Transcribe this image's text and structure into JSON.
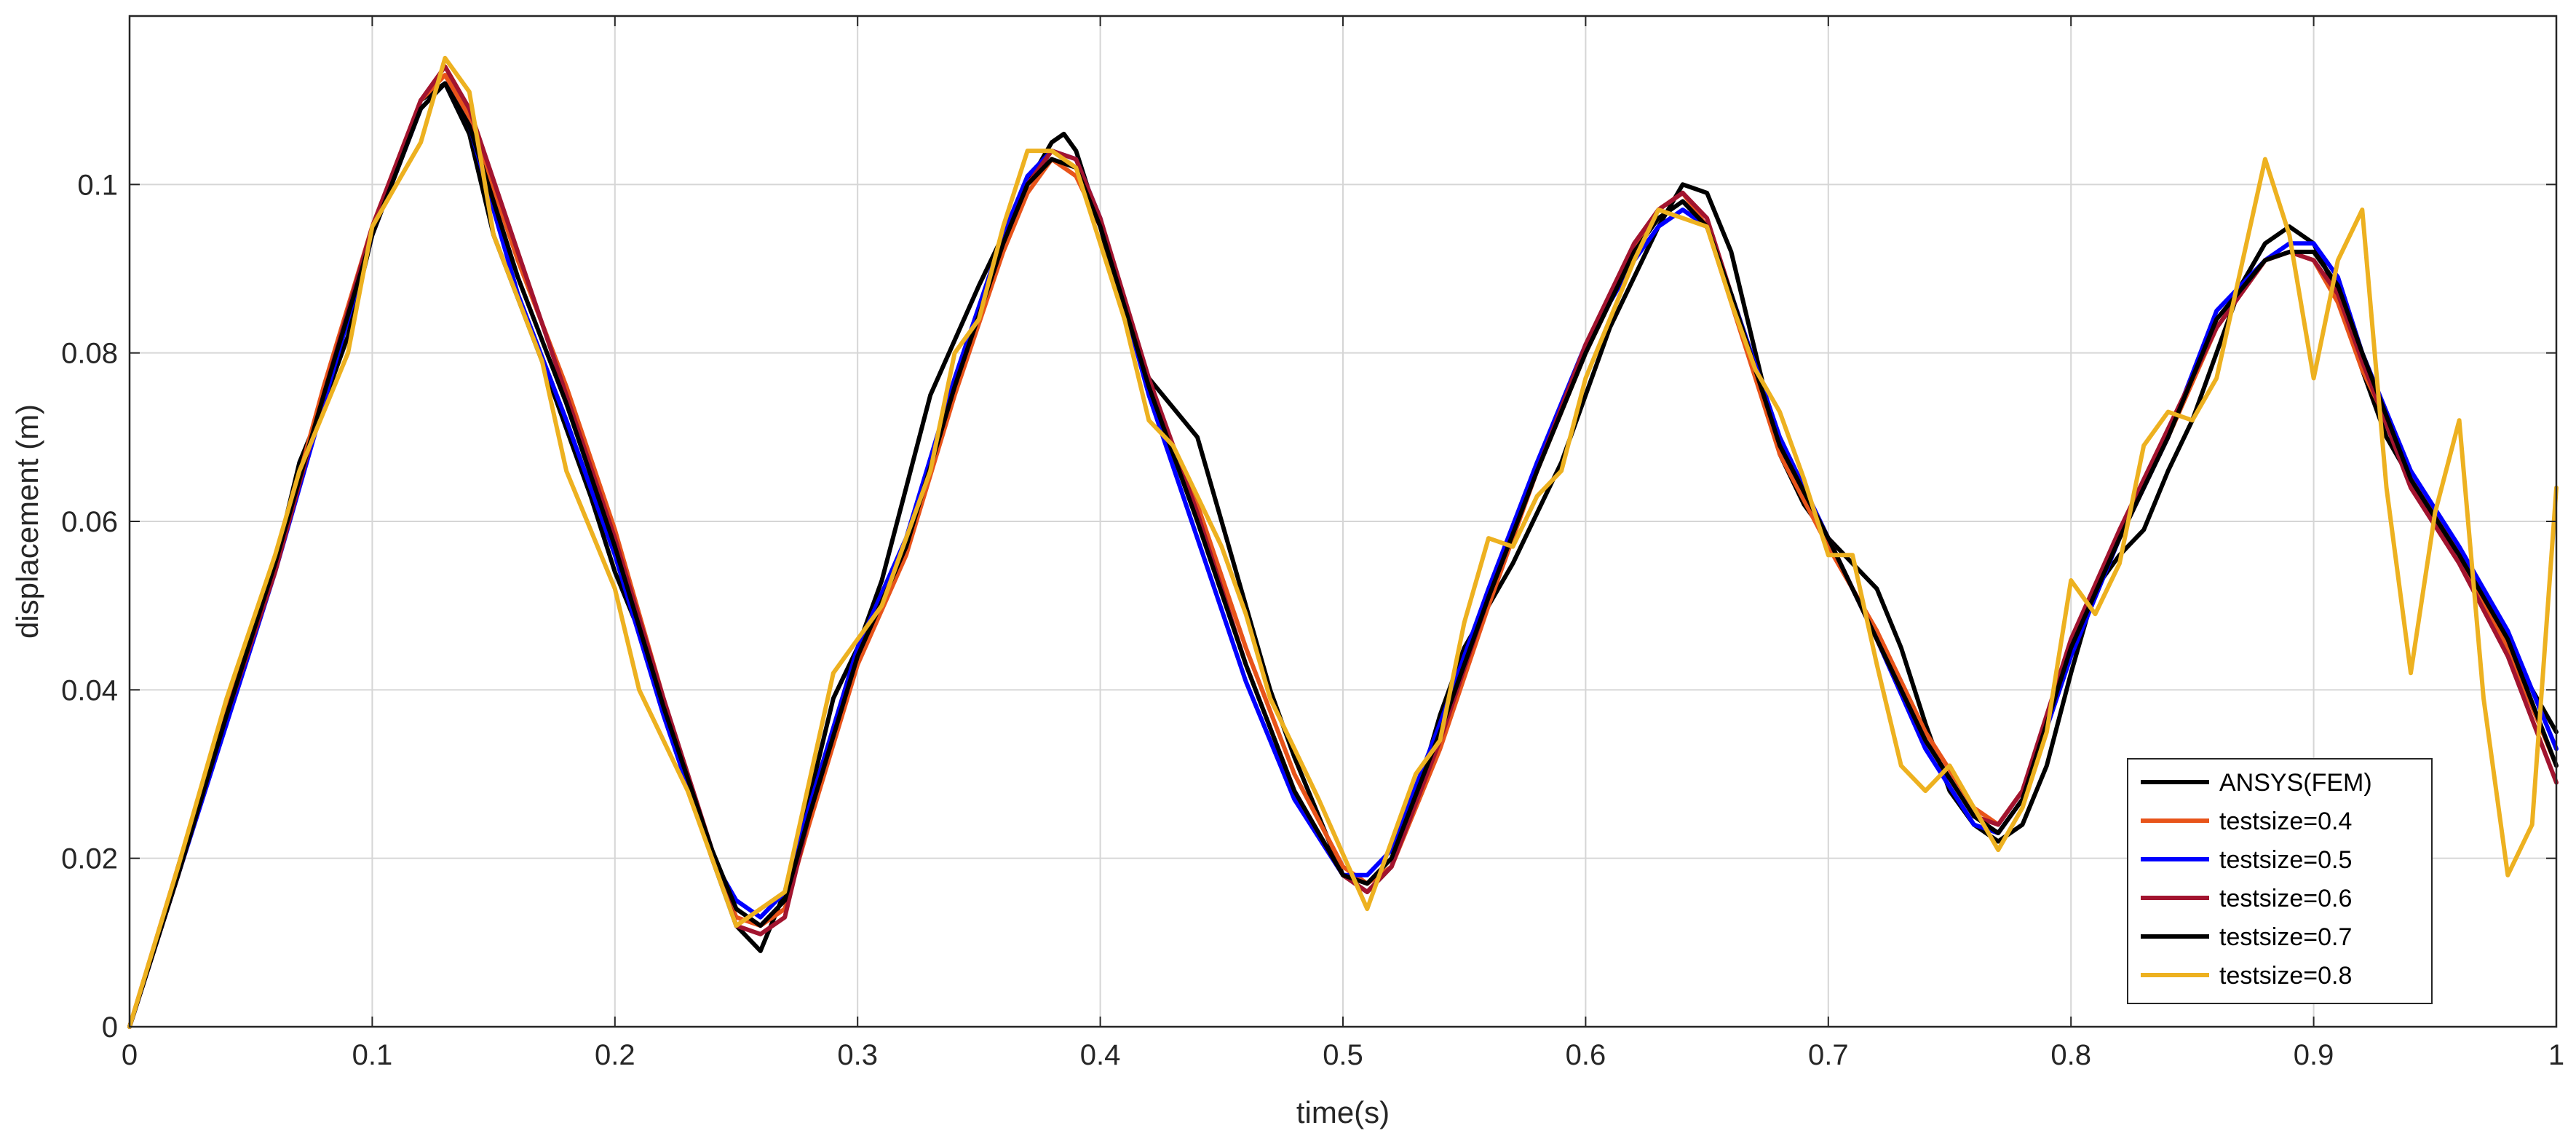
{
  "chart_data": {
    "type": "line",
    "title": "",
    "xlabel": "time(s)",
    "ylabel": "displacement (m)",
    "xlim": [
      0,
      1
    ],
    "ylim": [
      0,
      0.12
    ],
    "xticks": [
      0,
      0.1,
      0.2,
      0.3,
      0.4,
      0.5,
      0.6,
      0.7,
      0.8,
      0.9,
      1
    ],
    "xtick_labels": [
      "0",
      "0.1",
      "0.2",
      "0.3",
      "0.4",
      "0.5",
      "0.6",
      "0.7",
      "0.8",
      "0.9",
      "1"
    ],
    "yticks": [
      0,
      0.02,
      0.04,
      0.06,
      0.08,
      0.1
    ],
    "ytick_labels": [
      "0",
      "0.02",
      "0.04",
      "0.06",
      "0.08",
      "0.1"
    ],
    "grid": true,
    "legend_position": "bottom-right",
    "series": [
      {
        "name": "ANSYS(FEM)",
        "color": "#000000",
        "x": [
          0,
          0.01,
          0.02,
          0.04,
          0.06,
          0.07,
          0.08,
          0.09,
          0.1,
          0.11,
          0.12,
          0.13,
          0.14,
          0.15,
          0.17,
          0.19,
          0.2,
          0.21,
          0.22,
          0.23,
          0.24,
          0.25,
          0.26,
          0.27,
          0.28,
          0.29,
          0.3,
          0.31,
          0.32,
          0.33,
          0.35,
          0.37,
          0.38,
          0.385,
          0.39,
          0.4,
          0.41,
          0.42,
          0.44,
          0.45,
          0.46,
          0.47,
          0.48,
          0.49,
          0.5,
          0.51,
          0.52,
          0.53,
          0.54,
          0.55,
          0.57,
          0.59,
          0.61,
          0.63,
          0.64,
          0.65,
          0.66,
          0.67,
          0.68,
          0.69,
          0.7,
          0.71,
          0.72,
          0.73,
          0.74,
          0.75,
          0.76,
          0.77,
          0.78,
          0.79,
          0.8,
          0.81,
          0.82,
          0.83,
          0.84,
          0.85,
          0.86,
          0.87,
          0.88,
          0.89,
          0.9,
          0.91,
          0.92,
          0.93,
          0.94,
          0.95,
          0.96,
          0.97,
          0.98,
          0.99,
          1
        ],
        "y": [
          0,
          0.009,
          0.019,
          0.038,
          0.055,
          0.067,
          0.074,
          0.082,
          0.094,
          0.102,
          0.11,
          0.112,
          0.106,
          0.094,
          0.079,
          0.063,
          0.054,
          0.047,
          0.038,
          0.029,
          0.02,
          0.012,
          0.009,
          0.016,
          0.027,
          0.039,
          0.045,
          0.053,
          0.064,
          0.075,
          0.088,
          0.1,
          0.105,
          0.106,
          0.104,
          0.095,
          0.084,
          0.077,
          0.07,
          0.06,
          0.05,
          0.04,
          0.032,
          0.025,
          0.018,
          0.016,
          0.019,
          0.027,
          0.037,
          0.045,
          0.055,
          0.067,
          0.083,
          0.095,
          0.1,
          0.099,
          0.092,
          0.08,
          0.068,
          0.062,
          0.058,
          0.055,
          0.052,
          0.045,
          0.036,
          0.028,
          0.024,
          0.022,
          0.024,
          0.031,
          0.042,
          0.052,
          0.056,
          0.059,
          0.066,
          0.072,
          0.08,
          0.088,
          0.093,
          0.095,
          0.093,
          0.087,
          0.078,
          0.07,
          0.065,
          0.06,
          0.056,
          0.05,
          0.045,
          0.04,
          0.035
        ]
      },
      {
        "name": "testsize=0.4",
        "color": "#e8541a",
        "x": [
          0,
          0.02,
          0.04,
          0.06,
          0.08,
          0.1,
          0.12,
          0.13,
          0.14,
          0.16,
          0.18,
          0.2,
          0.22,
          0.24,
          0.25,
          0.26,
          0.27,
          0.28,
          0.3,
          0.32,
          0.34,
          0.36,
          0.37,
          0.38,
          0.39,
          0.4,
          0.42,
          0.44,
          0.46,
          0.48,
          0.5,
          0.51,
          0.52,
          0.54,
          0.56,
          0.58,
          0.6,
          0.62,
          0.63,
          0.64,
          0.65,
          0.66,
          0.68,
          0.7,
          0.72,
          0.74,
          0.76,
          0.77,
          0.78,
          0.8,
          0.82,
          0.84,
          0.86,
          0.88,
          0.89,
          0.9,
          0.91,
          0.92,
          0.94,
          0.96,
          0.98,
          1
        ],
        "y": [
          0,
          0.019,
          0.038,
          0.055,
          0.076,
          0.095,
          0.11,
          0.113,
          0.108,
          0.091,
          0.076,
          0.059,
          0.039,
          0.02,
          0.013,
          0.012,
          0.014,
          0.024,
          0.043,
          0.056,
          0.075,
          0.092,
          0.099,
          0.103,
          0.101,
          0.095,
          0.076,
          0.062,
          0.045,
          0.03,
          0.019,
          0.017,
          0.019,
          0.033,
          0.05,
          0.066,
          0.08,
          0.092,
          0.097,
          0.099,
          0.095,
          0.086,
          0.068,
          0.057,
          0.047,
          0.035,
          0.026,
          0.024,
          0.028,
          0.045,
          0.058,
          0.07,
          0.083,
          0.091,
          0.092,
          0.091,
          0.086,
          0.078,
          0.066,
          0.056,
          0.045,
          0.031
        ]
      },
      {
        "name": "testsize=0.5",
        "color": "#0000ff",
        "x": [
          0,
          0.02,
          0.04,
          0.06,
          0.08,
          0.1,
          0.12,
          0.13,
          0.14,
          0.16,
          0.18,
          0.2,
          0.22,
          0.24,
          0.25,
          0.26,
          0.27,
          0.28,
          0.3,
          0.32,
          0.34,
          0.36,
          0.37,
          0.38,
          0.39,
          0.4,
          0.42,
          0.44,
          0.46,
          0.48,
          0.5,
          0.51,
          0.52,
          0.54,
          0.56,
          0.58,
          0.6,
          0.62,
          0.63,
          0.64,
          0.65,
          0.66,
          0.68,
          0.7,
          0.72,
          0.74,
          0.76,
          0.77,
          0.78,
          0.8,
          0.82,
          0.84,
          0.86,
          0.88,
          0.89,
          0.9,
          0.91,
          0.92,
          0.94,
          0.96,
          0.98,
          1
        ],
        "y": [
          0,
          0.018,
          0.036,
          0.054,
          0.074,
          0.094,
          0.109,
          0.112,
          0.107,
          0.087,
          0.072,
          0.056,
          0.037,
          0.02,
          0.015,
          0.013,
          0.016,
          0.026,
          0.045,
          0.058,
          0.077,
          0.094,
          0.101,
          0.104,
          0.103,
          0.096,
          0.075,
          0.058,
          0.041,
          0.027,
          0.018,
          0.018,
          0.021,
          0.036,
          0.052,
          0.067,
          0.081,
          0.091,
          0.095,
          0.097,
          0.095,
          0.087,
          0.07,
          0.058,
          0.046,
          0.033,
          0.024,
          0.023,
          0.027,
          0.044,
          0.058,
          0.07,
          0.085,
          0.091,
          0.093,
          0.093,
          0.089,
          0.08,
          0.066,
          0.057,
          0.047,
          0.033
        ]
      },
      {
        "name": "testsize=0.6",
        "color": "#a2142f",
        "x": [
          0,
          0.02,
          0.04,
          0.06,
          0.08,
          0.1,
          0.12,
          0.13,
          0.14,
          0.16,
          0.18,
          0.2,
          0.22,
          0.24,
          0.25,
          0.26,
          0.27,
          0.28,
          0.3,
          0.32,
          0.34,
          0.36,
          0.37,
          0.38,
          0.39,
          0.4,
          0.42,
          0.44,
          0.46,
          0.48,
          0.5,
          0.51,
          0.52,
          0.54,
          0.56,
          0.58,
          0.6,
          0.62,
          0.63,
          0.64,
          0.65,
          0.66,
          0.68,
          0.7,
          0.72,
          0.74,
          0.76,
          0.77,
          0.78,
          0.8,
          0.82,
          0.84,
          0.86,
          0.88,
          0.89,
          0.9,
          0.91,
          0.92,
          0.94,
          0.96,
          0.98,
          1
        ],
        "y": [
          0,
          0.018,
          0.037,
          0.054,
          0.075,
          0.095,
          0.11,
          0.114,
          0.109,
          0.092,
          0.075,
          0.058,
          0.039,
          0.021,
          0.012,
          0.011,
          0.013,
          0.025,
          0.044,
          0.057,
          0.076,
          0.093,
          0.1,
          0.104,
          0.103,
          0.096,
          0.077,
          0.061,
          0.043,
          0.028,
          0.018,
          0.016,
          0.019,
          0.034,
          0.051,
          0.066,
          0.081,
          0.093,
          0.097,
          0.099,
          0.096,
          0.087,
          0.069,
          0.058,
          0.046,
          0.034,
          0.025,
          0.024,
          0.028,
          0.046,
          0.059,
          0.071,
          0.083,
          0.091,
          0.092,
          0.091,
          0.087,
          0.079,
          0.064,
          0.055,
          0.044,
          0.029
        ]
      },
      {
        "name": "testsize=0.7",
        "color": "#000000",
        "x": [
          0,
          0.02,
          0.04,
          0.06,
          0.08,
          0.1,
          0.12,
          0.13,
          0.14,
          0.16,
          0.18,
          0.2,
          0.22,
          0.24,
          0.25,
          0.26,
          0.27,
          0.28,
          0.3,
          0.32,
          0.34,
          0.36,
          0.37,
          0.38,
          0.39,
          0.4,
          0.42,
          0.44,
          0.46,
          0.48,
          0.5,
          0.51,
          0.52,
          0.54,
          0.56,
          0.58,
          0.6,
          0.62,
          0.63,
          0.64,
          0.65,
          0.66,
          0.68,
          0.7,
          0.72,
          0.74,
          0.76,
          0.77,
          0.78,
          0.8,
          0.82,
          0.84,
          0.86,
          0.88,
          0.89,
          0.9,
          0.91,
          0.92,
          0.94,
          0.96,
          0.98,
          1
        ],
        "y": [
          0,
          0.018,
          0.037,
          0.055,
          0.075,
          0.094,
          0.109,
          0.112,
          0.107,
          0.089,
          0.074,
          0.057,
          0.038,
          0.021,
          0.014,
          0.012,
          0.015,
          0.025,
          0.044,
          0.057,
          0.076,
          0.093,
          0.1,
          0.103,
          0.102,
          0.095,
          0.076,
          0.06,
          0.043,
          0.028,
          0.018,
          0.017,
          0.02,
          0.035,
          0.051,
          0.066,
          0.08,
          0.092,
          0.096,
          0.098,
          0.095,
          0.087,
          0.069,
          0.058,
          0.046,
          0.034,
          0.025,
          0.023,
          0.027,
          0.045,
          0.058,
          0.07,
          0.084,
          0.091,
          0.092,
          0.092,
          0.088,
          0.08,
          0.065,
          0.056,
          0.046,
          0.031
        ]
      },
      {
        "name": "testsize=0.8",
        "color": "#edb120",
        "x": [
          0,
          0.02,
          0.04,
          0.06,
          0.07,
          0.09,
          0.1,
          0.11,
          0.12,
          0.13,
          0.14,
          0.15,
          0.17,
          0.18,
          0.2,
          0.21,
          0.23,
          0.24,
          0.25,
          0.26,
          0.27,
          0.29,
          0.31,
          0.32,
          0.33,
          0.34,
          0.35,
          0.36,
          0.37,
          0.38,
          0.39,
          0.41,
          0.42,
          0.43,
          0.45,
          0.46,
          0.47,
          0.49,
          0.51,
          0.52,
          0.53,
          0.54,
          0.55,
          0.56,
          0.57,
          0.58,
          0.59,
          0.6,
          0.61,
          0.62,
          0.63,
          0.64,
          0.65,
          0.66,
          0.67,
          0.68,
          0.69,
          0.7,
          0.71,
          0.72,
          0.73,
          0.74,
          0.75,
          0.76,
          0.77,
          0.78,
          0.79,
          0.8,
          0.81,
          0.82,
          0.83,
          0.84,
          0.85,
          0.86,
          0.87,
          0.88,
          0.89,
          0.9,
          0.91,
          0.92,
          0.93,
          0.94,
          0.95,
          0.96,
          0.97,
          0.98,
          0.99,
          1
        ],
        "y": [
          0,
          0.019,
          0.039,
          0.056,
          0.066,
          0.08,
          0.095,
          0.1,
          0.105,
          0.115,
          0.111,
          0.094,
          0.079,
          0.066,
          0.052,
          0.04,
          0.028,
          0.02,
          0.012,
          0.014,
          0.016,
          0.042,
          0.05,
          0.058,
          0.066,
          0.08,
          0.084,
          0.095,
          0.104,
          0.104,
          0.102,
          0.084,
          0.072,
          0.069,
          0.057,
          0.049,
          0.039,
          0.027,
          0.014,
          0.022,
          0.03,
          0.034,
          0.048,
          0.058,
          0.057,
          0.063,
          0.066,
          0.077,
          0.084,
          0.091,
          0.097,
          0.096,
          0.095,
          0.086,
          0.078,
          0.073,
          0.065,
          0.056,
          0.056,
          0.043,
          0.031,
          0.028,
          0.031,
          0.026,
          0.021,
          0.026,
          0.035,
          0.053,
          0.049,
          0.055,
          0.069,
          0.073,
          0.072,
          0.077,
          0.09,
          0.103,
          0.094,
          0.077,
          0.091,
          0.097,
          0.064,
          0.042,
          0.061,
          0.072,
          0.039,
          0.018,
          0.024,
          0.064
        ]
      }
    ]
  }
}
